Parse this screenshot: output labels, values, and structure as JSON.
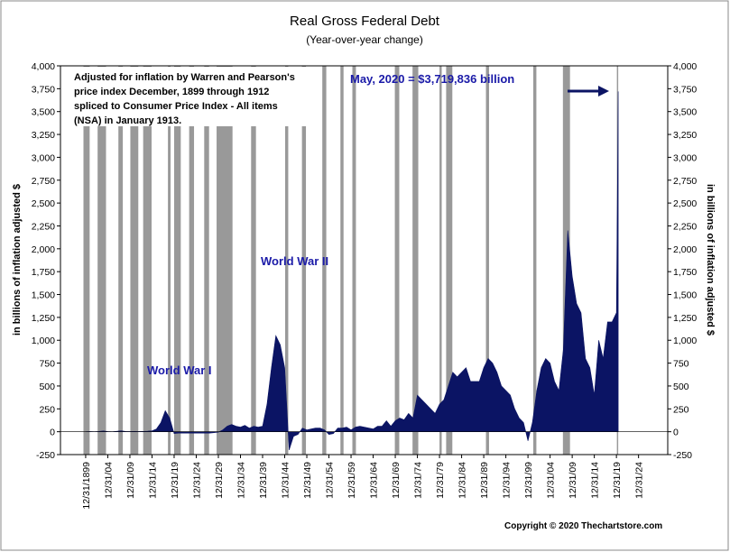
{
  "chart_data": {
    "type": "area",
    "title": "Real Gross Federal Debt",
    "subtitle": "(Year-over-year change)",
    "ylabel": "in billions of inflation adjusted $",
    "y2label": "in billions of inflation adjusted $",
    "note": [
      "Adjusted for inflation by Warren and Pearson's",
      "price index December, 1899 through 1912",
      "spliced to Consumer Price Index - All items",
      "(NSA) in January 1913."
    ],
    "annotations": [
      "World War I",
      "World War II",
      "May, 2020 = $3,719,836 billion"
    ],
    "copyright": "Copyright © 2020 Thechartstore.com",
    "color": "#0b1464",
    "recession_color": "#999999",
    "xlim": [
      1894.3,
      2031.6
    ],
    "ylim": [
      -250,
      4000
    ],
    "yticks": [
      -250,
      0,
      250,
      500,
      750,
      {
        "value": 1000,
        "label": "1,000"
      },
      {
        "value": 1250,
        "label": "1,250"
      },
      {
        "value": 1500,
        "label": "1,500"
      },
      {
        "value": 1750,
        "label": "1,750"
      },
      {
        "value": 2000,
        "label": "2,000"
      },
      {
        "value": 2250,
        "label": "2,250"
      },
      {
        "value": 2500,
        "label": "2,500"
      },
      {
        "value": 2750,
        "label": "2,750"
      },
      {
        "value": 3000,
        "label": "3,000"
      },
      {
        "value": 3250,
        "label": "3,250"
      },
      {
        "value": 3500,
        "label": "3,500"
      },
      {
        "value": 3750,
        "label": "3,750"
      },
      {
        "value": 4000,
        "label": "4,000"
      }
    ],
    "xticks": [
      {
        "value": 1900,
        "label": "12/31/1899"
      },
      {
        "value": 1905,
        "label": "12/31/04"
      },
      {
        "value": 1910,
        "label": "12/31/09"
      },
      {
        "value": 1915,
        "label": "12/31/14"
      },
      {
        "value": 1920,
        "label": "12/31/19"
      },
      {
        "value": 1925,
        "label": "12/31/24"
      },
      {
        "value": 1930,
        "label": "12/31/29"
      },
      {
        "value": 1935,
        "label": "12/31/34"
      },
      {
        "value": 1940,
        "label": "12/31/39"
      },
      {
        "value": 1945,
        "label": "12/31/44"
      },
      {
        "value": 1950,
        "label": "12/31/49"
      },
      {
        "value": 1955,
        "label": "12/31/54"
      },
      {
        "value": 1960,
        "label": "12/31/59"
      },
      {
        "value": 1965,
        "label": "12/31/64"
      },
      {
        "value": 1970,
        "label": "12/31/69"
      },
      {
        "value": 1975,
        "label": "12/31/74"
      },
      {
        "value": 1980,
        "label": "12/31/79"
      },
      {
        "value": 1985,
        "label": "12/31/84"
      },
      {
        "value": 1990,
        "label": "12/31/89"
      },
      {
        "value": 1995,
        "label": "12/31/94"
      },
      {
        "value": 2000,
        "label": "12/31/99"
      },
      {
        "value": 2005,
        "label": "12/31/04"
      },
      {
        "value": 2010,
        "label": "12/31/09"
      },
      {
        "value": 2015,
        "label": "12/31/14"
      },
      {
        "value": 2020,
        "label": "12/31/19"
      },
      {
        "value": 2025,
        "label": "12/31/24"
      }
    ],
    "recessions": [
      [
        1899.5,
        1900.9
      ],
      [
        1902.7,
        1904.6
      ],
      [
        1907.4,
        1908.4
      ],
      [
        1910.1,
        1911.9
      ],
      [
        1913.0,
        1914.9
      ],
      [
        1918.6,
        1919.2
      ],
      [
        1920.0,
        1921.5
      ],
      [
        1923.4,
        1924.5
      ],
      [
        1926.8,
        1927.9
      ],
      [
        1929.6,
        1933.2
      ],
      [
        1937.4,
        1938.5
      ],
      [
        1945.1,
        1945.8
      ],
      [
        1948.9,
        1949.8
      ],
      [
        1953.5,
        1954.4
      ],
      [
        1957.6,
        1958.3
      ],
      [
        1960.3,
        1961.1
      ],
      [
        1969.9,
        1970.9
      ],
      [
        1973.9,
        1975.2
      ],
      [
        1980.0,
        1980.5
      ],
      [
        1981.5,
        1982.9
      ],
      [
        1990.5,
        1991.2
      ],
      [
        2001.2,
        2001.9
      ],
      [
        2007.9,
        2009.5
      ],
      [
        2020.1,
        2020.4
      ]
    ],
    "x": [
      1900,
      1901,
      1902,
      1903,
      1904,
      1905,
      1906,
      1907,
      1908,
      1909,
      1910,
      1911,
      1912,
      1913,
      1914,
      1915,
      1916,
      1917,
      1918,
      1919,
      1920,
      1921,
      1922,
      1923,
      1924,
      1925,
      1926,
      1927,
      1928,
      1929,
      1930,
      1931,
      1932,
      1933,
      1934,
      1935,
      1936,
      1937,
      1938,
      1939,
      1940,
      1941,
      1942,
      1943,
      1944,
      1945,
      1946,
      1947,
      1948,
      1949,
      1950,
      1951,
      1952,
      1953,
      1954,
      1955,
      1956,
      1957,
      1958,
      1959,
      1960,
      1961,
      1962,
      1963,
      1964,
      1965,
      1966,
      1967,
      1968,
      1969,
      1970,
      1971,
      1972,
      1973,
      1974,
      1975,
      1976,
      1977,
      1978,
      1979,
      1980,
      1981,
      1982,
      1983,
      1984,
      1985,
      1986,
      1987,
      1988,
      1989,
      1990,
      1991,
      1992,
      1993,
      1994,
      1995,
      1996,
      1997,
      1998,
      1999,
      2000,
      2001,
      2002,
      2003,
      2004,
      2005,
      2006,
      2007,
      2008,
      2009,
      2010,
      2011,
      2012,
      2013,
      2014,
      2015,
      2016,
      2017,
      2018,
      2019,
      2020,
      2020.4
    ],
    "values": [
      0,
      2,
      0,
      3,
      8,
      2,
      0,
      5,
      10,
      3,
      2,
      3,
      2,
      4,
      6,
      10,
      30,
      100,
      230,
      150,
      -20,
      -15,
      -15,
      -15,
      -15,
      -15,
      -15,
      -15,
      -15,
      -10,
      -5,
      20,
      60,
      80,
      60,
      50,
      70,
      40,
      60,
      50,
      60,
      300,
      700,
      1050,
      950,
      700,
      -200,
      -50,
      -30,
      40,
      20,
      30,
      40,
      40,
      20,
      -30,
      -20,
      40,
      40,
      50,
      20,
      50,
      60,
      50,
      40,
      30,
      60,
      60,
      120,
      60,
      120,
      150,
      130,
      200,
      150,
      400,
      350,
      300,
      250,
      200,
      300,
      350,
      500,
      650,
      600,
      650,
      700,
      550,
      550,
      550,
      700,
      800,
      750,
      650,
      500,
      450,
      400,
      250,
      150,
      100,
      -100,
      100,
      450,
      700,
      800,
      750,
      550,
      450,
      900,
      2200,
      1700,
      1400,
      1300,
      800,
      700,
      400,
      1000,
      800,
      1200,
      1200,
      1300,
      3719.836
    ]
  }
}
